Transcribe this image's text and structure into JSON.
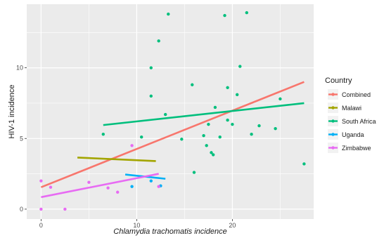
{
  "chart_data": {
    "type": "scatter",
    "xlabel": "Chlamydia trachomatis incidence",
    "ylabel": "HIV-1 incidence",
    "xlim": [
      -1.5,
      28.5
    ],
    "ylim": [
      -0.7,
      14.5
    ],
    "x_ticks": [
      0,
      10,
      20
    ],
    "y_ticks": [
      0,
      5,
      10
    ],
    "grid": true,
    "legend_position": "right",
    "legend_title": "Country",
    "series": [
      {
        "name": "Combined",
        "color": "#F8766D",
        "points": [],
        "fit": [
          [
            0,
            1.55
          ],
          [
            27.5,
            9.0
          ]
        ]
      },
      {
        "name": "Malawi",
        "color": "#A3A500",
        "points": [],
        "fit": [
          [
            3.8,
            3.65
          ],
          [
            12.0,
            3.4
          ]
        ]
      },
      {
        "name": "South Africa",
        "color": "#00BF7D",
        "points": [
          [
            6.5,
            5.3
          ],
          [
            10.5,
            5.1
          ],
          [
            11.5,
            10.0
          ],
          [
            11.5,
            8.0
          ],
          [
            12.3,
            11.9
          ],
          [
            13.0,
            6.7
          ],
          [
            13.3,
            13.8
          ],
          [
            14.7,
            4.95
          ],
          [
            15.8,
            8.8
          ],
          [
            16.0,
            2.6
          ],
          [
            17.0,
            5.2
          ],
          [
            17.3,
            4.5
          ],
          [
            17.5,
            6.0
          ],
          [
            17.8,
            4.0
          ],
          [
            18.0,
            3.85
          ],
          [
            18.2,
            7.2
          ],
          [
            18.7,
            5.1
          ],
          [
            19.2,
            13.7
          ],
          [
            19.5,
            8.6
          ],
          [
            19.5,
            6.3
          ],
          [
            20.0,
            6.0
          ],
          [
            20.5,
            8.1
          ],
          [
            20.8,
            10.1
          ],
          [
            21.5,
            13.9
          ],
          [
            22.0,
            5.3
          ],
          [
            22.8,
            5.9
          ],
          [
            24.5,
            5.7
          ],
          [
            25.0,
            7.8
          ],
          [
            27.5,
            3.2
          ]
        ],
        "fit": [
          [
            6.5,
            5.95
          ],
          [
            27.5,
            7.5
          ]
        ]
      },
      {
        "name": "Uganda",
        "color": "#00B0F6",
        "points": [
          [
            9.5,
            1.6
          ],
          [
            11.5,
            2.0
          ],
          [
            12.5,
            1.65
          ]
        ],
        "fit": [
          [
            8.8,
            2.45
          ],
          [
            13.0,
            2.15
          ]
        ]
      },
      {
        "name": "Zimbabwe",
        "color": "#E76BF3",
        "points": [
          [
            0.0,
            2.0
          ],
          [
            0.0,
            0.0
          ],
          [
            1.0,
            1.55
          ],
          [
            2.5,
            0.0
          ],
          [
            5.0,
            1.9
          ],
          [
            7.0,
            1.5
          ],
          [
            8.0,
            1.2
          ],
          [
            9.5,
            4.5
          ],
          [
            12.3,
            1.6
          ]
        ],
        "fit": [
          [
            0.0,
            0.85
          ],
          [
            12.3,
            2.5
          ]
        ]
      }
    ]
  }
}
